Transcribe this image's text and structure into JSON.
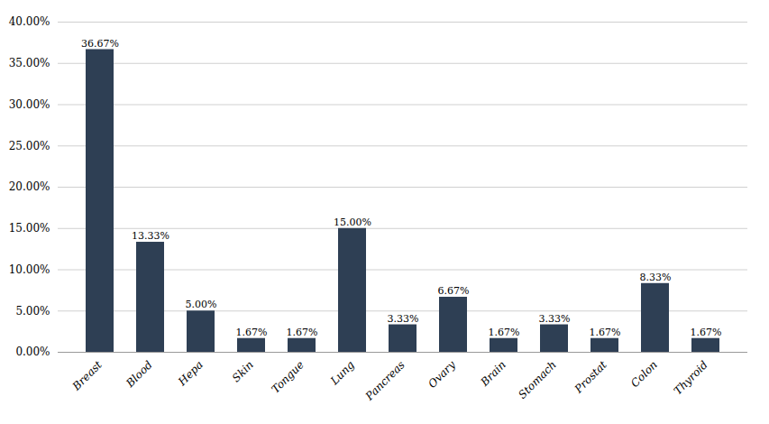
{
  "chart_data": {
    "type": "bar",
    "categories": [
      "Breast",
      "Blood",
      "Hepa",
      "Skin",
      "Tongue",
      "Lung",
      "Pancreas",
      "Ovary",
      "Brain",
      "Stomach",
      "Prostat",
      "Colon",
      "Thyroid"
    ],
    "values": [
      36.67,
      13.33,
      5.0,
      1.67,
      1.67,
      15.0,
      3.33,
      6.67,
      1.67,
      3.33,
      1.67,
      8.33,
      1.67
    ],
    "value_labels": [
      "36.67%",
      "13.33%",
      "5.00%",
      "1.67%",
      "1.67%",
      "15.00%",
      "3.33%",
      "6.67%",
      "1.67%",
      "3.33%",
      "1.67%",
      "8.33%",
      "1.67%"
    ],
    "data_labels": true,
    "color": "#2e3f54",
    "ylim": [
      0,
      40
    ],
    "yticks": [
      {
        "value": 0,
        "label": "0.00%"
      },
      {
        "value": 5,
        "label": "5.00%"
      },
      {
        "value": 10,
        "label": "10.00%"
      },
      {
        "value": 15,
        "label": "15.00%"
      },
      {
        "value": 20,
        "label": "20.00%"
      },
      {
        "value": 25,
        "label": "25.00%"
      },
      {
        "value": 30,
        "label": "30.00%"
      },
      {
        "value": 35,
        "label": "35.00%"
      },
      {
        "value": 40,
        "label": "40.00%"
      }
    ],
    "grid": true
  }
}
